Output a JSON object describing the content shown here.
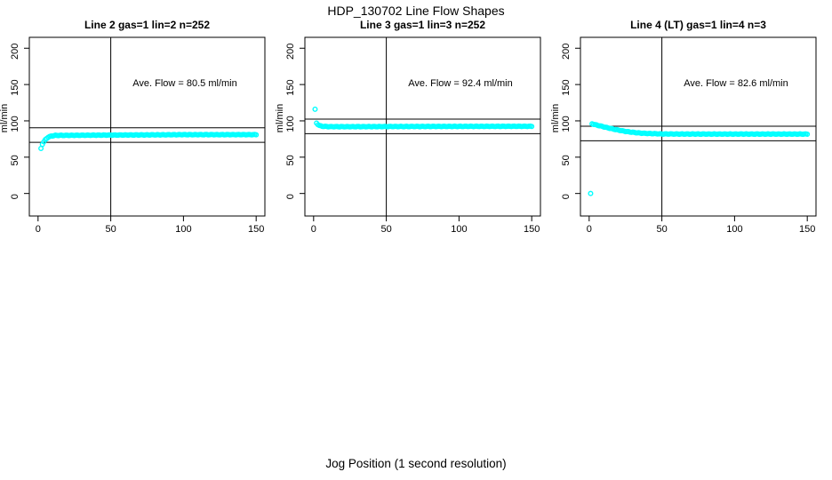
{
  "page": {
    "title": "HDP_130702  Line Flow Shapes",
    "xlabel": "Jog Position (1 second resolution)"
  },
  "colors": {
    "points": "#00FFFF",
    "axis": "#000000",
    "background": "#FFFFFF"
  },
  "chart_data": [
    {
      "type": "scatter",
      "title": "Line 2 gas=1 lin=2 n=252",
      "annotation": "Ave. Flow =  80.5  ml/min",
      "ave_flow": 80.5,
      "ylabel": "ml/min",
      "xticks": [
        0,
        50,
        100,
        150
      ],
      "yticks": [
        0,
        50,
        100,
        150,
        200
      ],
      "xlim": [
        -6,
        156
      ],
      "ylim": [
        -31,
        215
      ],
      "grid": false,
      "vline_x": 50,
      "hlines_y": [
        90.5,
        70.5
      ],
      "outliers": [
        [
          2,
          62
        ]
      ],
      "curve_keypoints": [
        [
          3,
          68
        ],
        [
          4,
          71
        ],
        [
          5,
          74
        ],
        [
          6,
          76
        ],
        [
          7,
          77.5
        ],
        [
          9,
          79
        ],
        [
          12,
          80
        ],
        [
          20,
          80
        ],
        [
          40,
          80.3
        ],
        [
          70,
          80.6
        ],
        [
          100,
          81
        ],
        [
          150,
          81
        ]
      ],
      "x_step": 1
    },
    {
      "type": "scatter",
      "title": "Line 3 gas=1 lin=3 n=252",
      "annotation": "Ave. Flow =  92.4  ml/min",
      "ave_flow": 92.4,
      "ylabel": "ml/min",
      "xticks": [
        0,
        50,
        100,
        150
      ],
      "yticks": [
        0,
        50,
        100,
        150,
        200
      ],
      "xlim": [
        -6,
        156
      ],
      "ylim": [
        -31,
        215
      ],
      "grid": false,
      "vline_x": 50,
      "hlines_y": [
        102.4,
        82.4
      ],
      "outliers": [
        [
          1,
          116
        ]
      ],
      "curve_keypoints": [
        [
          2,
          97
        ],
        [
          3,
          95
        ],
        [
          4,
          93.5
        ],
        [
          6,
          92.5
        ],
        [
          10,
          92
        ],
        [
          30,
          92
        ],
        [
          60,
          92.2
        ],
        [
          100,
          92.4
        ],
        [
          150,
          92.5
        ]
      ],
      "x_step": 1
    },
    {
      "type": "scatter",
      "title": "Line 4 (LT) gas=1 lin=4 n=3",
      "annotation": "Ave. Flow =  82.6  ml/min",
      "ave_flow": 82.6,
      "ylabel": "ml/min",
      "xticks": [
        0,
        50,
        100,
        150
      ],
      "yticks": [
        0,
        50,
        100,
        150,
        200
      ],
      "xlim": [
        -6,
        156
      ],
      "ylim": [
        -31,
        215
      ],
      "grid": false,
      "vline_x": 50,
      "hlines_y": [
        92.6,
        72.6
      ],
      "outliers": [
        [
          1,
          0
        ]
      ],
      "curve_keypoints": [
        [
          2,
          96
        ],
        [
          4,
          94.8
        ],
        [
          6,
          93.8
        ],
        [
          8,
          92.8
        ],
        [
          10,
          91.8
        ],
        [
          13,
          90.3
        ],
        [
          16,
          89
        ],
        [
          20,
          87.3
        ],
        [
          25,
          85.5
        ],
        [
          30,
          84.2
        ],
        [
          35,
          83.2
        ],
        [
          40,
          82.6
        ],
        [
          50,
          82
        ],
        [
          65,
          81.8
        ],
        [
          90,
          81.8
        ],
        [
          120,
          81.8
        ],
        [
          150,
          81.8
        ]
      ],
      "x_step": 1
    }
  ]
}
